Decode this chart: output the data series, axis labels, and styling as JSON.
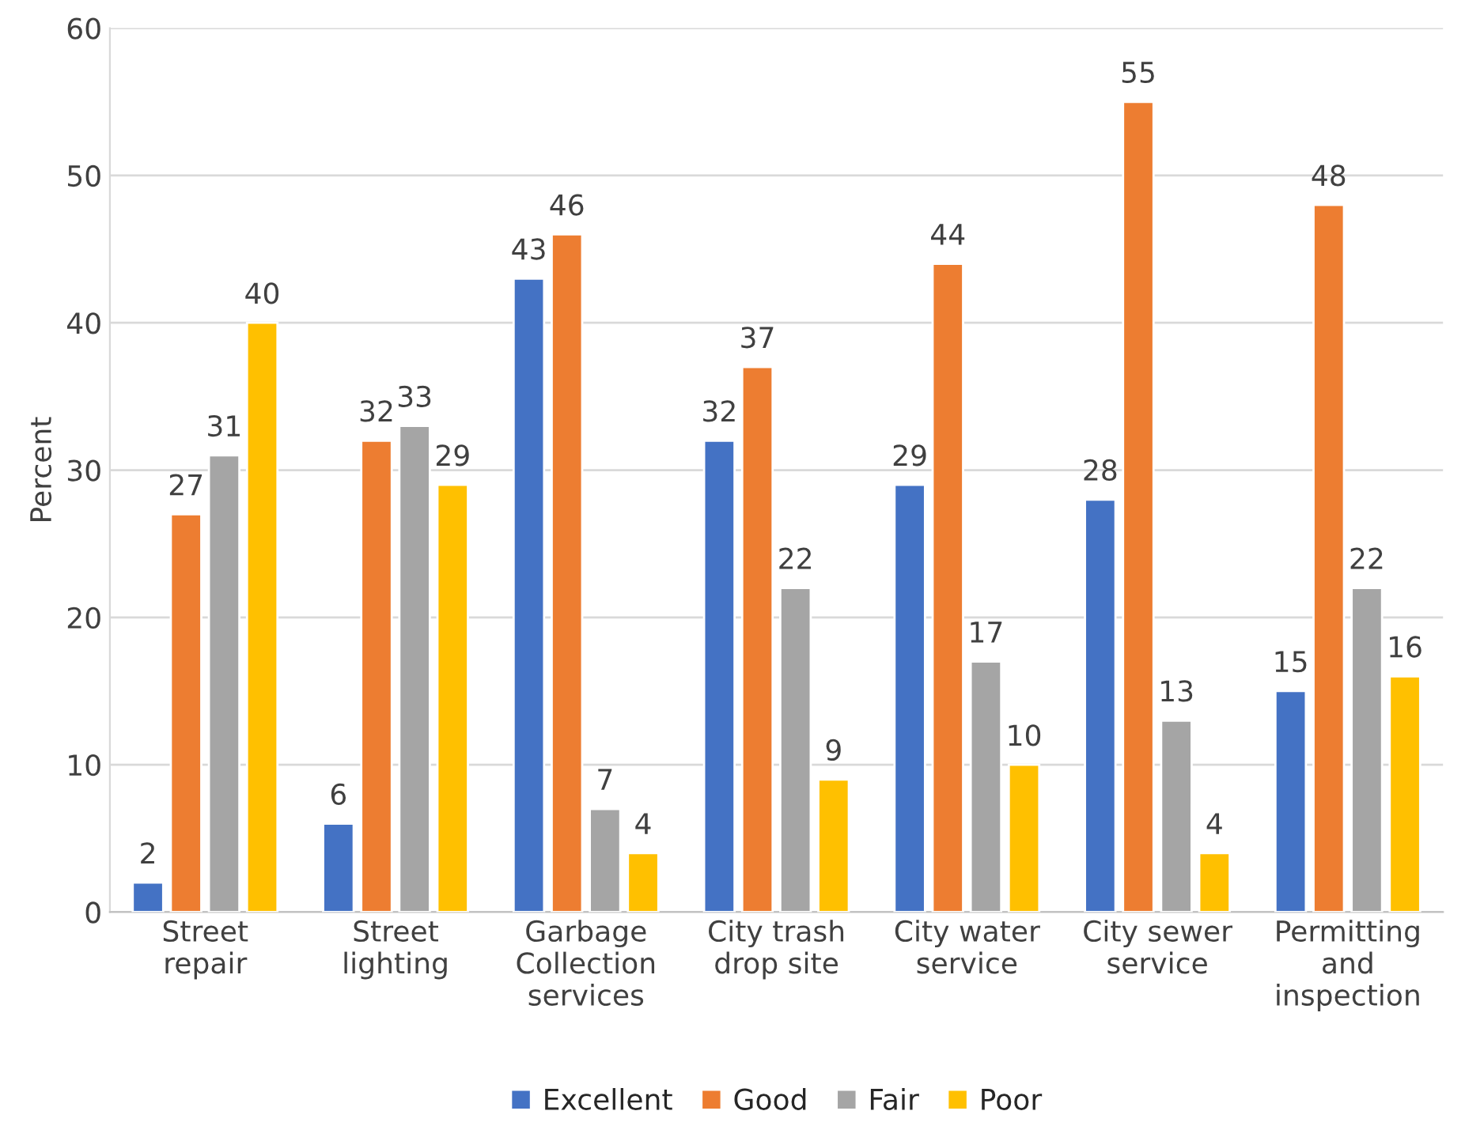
{
  "chart_data": {
    "type": "bar",
    "ylabel": "Percent",
    "categories": [
      "Street\nrepair",
      "Street\nlighting",
      "Garbage\nCollection\nservices",
      "City trash\ndrop site",
      "City water\nservice",
      "City sewer\nservice",
      "Permitting\nand\ninspection"
    ],
    "series": [
      {
        "name": "Excellent",
        "color": "#4472c4",
        "values": [
          2,
          6,
          43,
          32,
          29,
          28,
          15
        ]
      },
      {
        "name": "Good",
        "color": "#ed7d31",
        "values": [
          27,
          32,
          46,
          37,
          44,
          55,
          48
        ]
      },
      {
        "name": "Fair",
        "color": "#a5a5a5",
        "values": [
          31,
          33,
          7,
          22,
          17,
          13,
          22
        ]
      },
      {
        "name": "Poor",
        "color": "#ffc000",
        "values": [
          40,
          29,
          4,
          9,
          10,
          4,
          16
        ]
      }
    ],
    "ylim": [
      0,
      60
    ],
    "yticks": [
      0,
      10,
      20,
      30,
      40,
      50,
      60
    ],
    "grid": "y",
    "legend": "bottom",
    "data_labels": true
  }
}
